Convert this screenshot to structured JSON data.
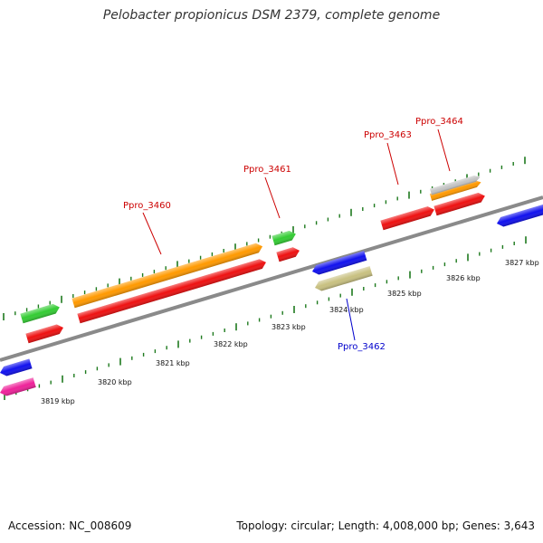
{
  "title": "Pelobacter propionicus DSM 2379, complete genome",
  "footer": {
    "accession": "Accession: NC_008609",
    "stats": "Topology: circular; Length: 4,008,000 bp; Genes: 3,643"
  },
  "colors": {
    "backbone": "#8a8a8a",
    "tick": "#1e7a1e",
    "forward_label": "#cc0000",
    "reverse_label": "#0000cc",
    "gene_red": "#ee1111",
    "gene_orange": "#ff9900",
    "gene_green": "#33cc33",
    "gene_blue": "#1111ee",
    "gene_magenta": "#ee2299",
    "gene_gray": "#c4c4c4",
    "gene_khaki": "#c8c080"
  },
  "scale": {
    "labels": [
      "3819 kbp",
      "3820 kbp",
      "3821 kbp",
      "3822 kbp",
      "3823 kbp",
      "3824 kbp",
      "3825 kbp",
      "3826 kbp",
      "3827 kbp"
    ]
  },
  "gene_labels": [
    {
      "name": "Ppro_3460",
      "strand": "forward"
    },
    {
      "name": "Ppro_3461",
      "strand": "forward"
    },
    {
      "name": "Ppro_3463",
      "strand": "forward"
    },
    {
      "name": "Ppro_3464",
      "strand": "forward"
    },
    {
      "name": "Ppro_3462",
      "strand": "reverse"
    }
  ]
}
